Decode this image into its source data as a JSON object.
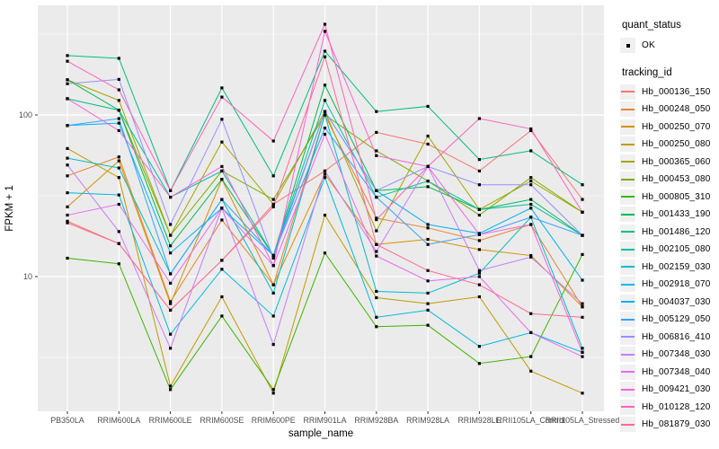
{
  "legend": {
    "quant_status_title": "quant_status",
    "ok_label": "OK",
    "tracking_id_title": "tracking_id"
  },
  "style": {
    "panel_bg": "#EBEBEB",
    "grid_major": "#FFFFFF",
    "grid_minor": "#F7F7F7",
    "tick_text": "#4D4D4D",
    "point_color": "#000000"
  },
  "chart_data": {
    "type": "line",
    "title": "",
    "xlabel": "sample_name",
    "ylabel": "FPKM + 1",
    "yscale": "log10",
    "ylim": [
      1.45,
      480
    ],
    "yticks": [
      10,
      100
    ],
    "y_minor_gridlines": [
      3.162,
      31.62,
      316.2
    ],
    "grid": true,
    "legend_position": "right",
    "point_shape": "filled-square-black",
    "x_categories": [
      "PB350LA",
      "RRIM600LA",
      "RRIM600LE",
      "RRIM600SE",
      "RRIM600PE",
      "RRIM901LA",
      "RRIM928BA",
      "RRIM928LA",
      "RRIM928LE",
      "RRII105LA_Control",
      "RRII105LA_Stressed"
    ],
    "series": [
      {
        "name": "Hb_000136_150",
        "color": "#F8766D",
        "values": [
          22,
          16,
          6.2,
          12.6,
          28,
          45,
          78,
          66,
          45,
          80,
          30
        ]
      },
      {
        "name": "Hb_000248_050",
        "color": "#EA8331",
        "values": [
          42,
          55,
          7,
          22.4,
          8.9,
          100,
          23,
          20,
          16.7,
          21,
          6.5
        ]
      },
      {
        "name": "Hb_000250_070",
        "color": "#D89000",
        "values": [
          27,
          52,
          6.8,
          40,
          8.9,
          43,
          15.8,
          17,
          14.7,
          13.5,
          6.5
        ]
      },
      {
        "name": "Hb_000250_080",
        "color": "#C09B00",
        "values": [
          62,
          41,
          2.1,
          7.5,
          1.9,
          24,
          7.4,
          6.8,
          7.5,
          2.6,
          1.9
        ]
      },
      {
        "name": "Hb_000365_060",
        "color": "#A3A500",
        "values": [
          165,
          123,
          18,
          68,
          28,
          105,
          19.2,
          74,
          26,
          39,
          25
        ]
      },
      {
        "name": "Hb_000453_080",
        "color": "#7CAE00",
        "values": [
          126,
          107,
          18,
          45,
          30,
          100,
          60,
          39,
          24,
          41,
          25
        ]
      },
      {
        "name": "Hb_000805_310",
        "color": "#39B600",
        "values": [
          13,
          12,
          2,
          5.7,
          2,
          14,
          4.9,
          5,
          2.9,
          3.2,
          13.7
        ]
      },
      {
        "name": "Hb_001433_190",
        "color": "#00BB4E",
        "values": [
          165,
          107,
          15.5,
          40,
          13.5,
          153,
          34,
          36,
          26,
          30,
          18
        ]
      },
      {
        "name": "Hb_001486_120",
        "color": "#00BF7D",
        "values": [
          233,
          224,
          34,
          147,
          42,
          248,
          105,
          113,
          53,
          60,
          37
        ]
      },
      {
        "name": "Hb_002105_080",
        "color": "#00C1A3",
        "values": [
          126,
          107,
          31,
          45,
          13.5,
          123,
          31,
          39,
          26,
          28,
          18
        ]
      },
      {
        "name": "Hb_002159_030",
        "color": "#00BFC4",
        "values": [
          54,
          47,
          10.4,
          30,
          7.9,
          100,
          8.1,
          7.9,
          10.5,
          23.3,
          3.6
        ]
      },
      {
        "name": "Hb_002918_070",
        "color": "#00BAE0",
        "values": [
          33,
          32,
          4.4,
          11.1,
          5.7,
          41,
          5.6,
          6.2,
          3.7,
          4.5,
          3.4
        ]
      },
      {
        "name": "Hb_004037_030",
        "color": "#00B0F6",
        "values": [
          86,
          89,
          14,
          26.5,
          13.5,
          105,
          34,
          21,
          18.5,
          26.5,
          9.5
        ]
      },
      {
        "name": "Hb_005129_050",
        "color": "#35A2FF",
        "values": [
          86,
          95,
          10.4,
          30,
          13.5,
          83,
          31,
          15.8,
          18.2,
          23.3,
          18
        ]
      },
      {
        "name": "Hb_006816_410",
        "color": "#9590FF",
        "values": [
          156,
          166,
          21,
          94,
          13,
          105,
          34,
          48,
          37,
          37,
          18
        ]
      },
      {
        "name": "Hb_007348_030",
        "color": "#C77CFF",
        "values": [
          49,
          19,
          3.6,
          26.5,
          3.8,
          45,
          14.3,
          48,
          10.9,
          13.2,
          6.8
        ]
      },
      {
        "name": "Hb_007348_040",
        "color": "#E76BF3",
        "values": [
          24,
          28,
          9.1,
          26.5,
          11.7,
          76,
          13.4,
          9.4,
          10,
          4.5,
          3.2
        ]
      },
      {
        "name": "Hb_009421_030",
        "color": "#FA62DB",
        "values": [
          126,
          80,
          31,
          48,
          11.7,
          329,
          56,
          48,
          18.2,
          21,
          3.4
        ]
      },
      {
        "name": "Hb_010128_120",
        "color": "#FF62BC",
        "values": [
          215,
          143,
          34,
          129,
          69,
          364,
          22.5,
          48,
          95,
          82,
          25
        ]
      },
      {
        "name": "Hb_081879_030",
        "color": "#FF6A98",
        "values": [
          21.5,
          16,
          6.2,
          12.6,
          27,
          229,
          15.8,
          10.9,
          8.9,
          5.9,
          5.6
        ]
      }
    ]
  }
}
